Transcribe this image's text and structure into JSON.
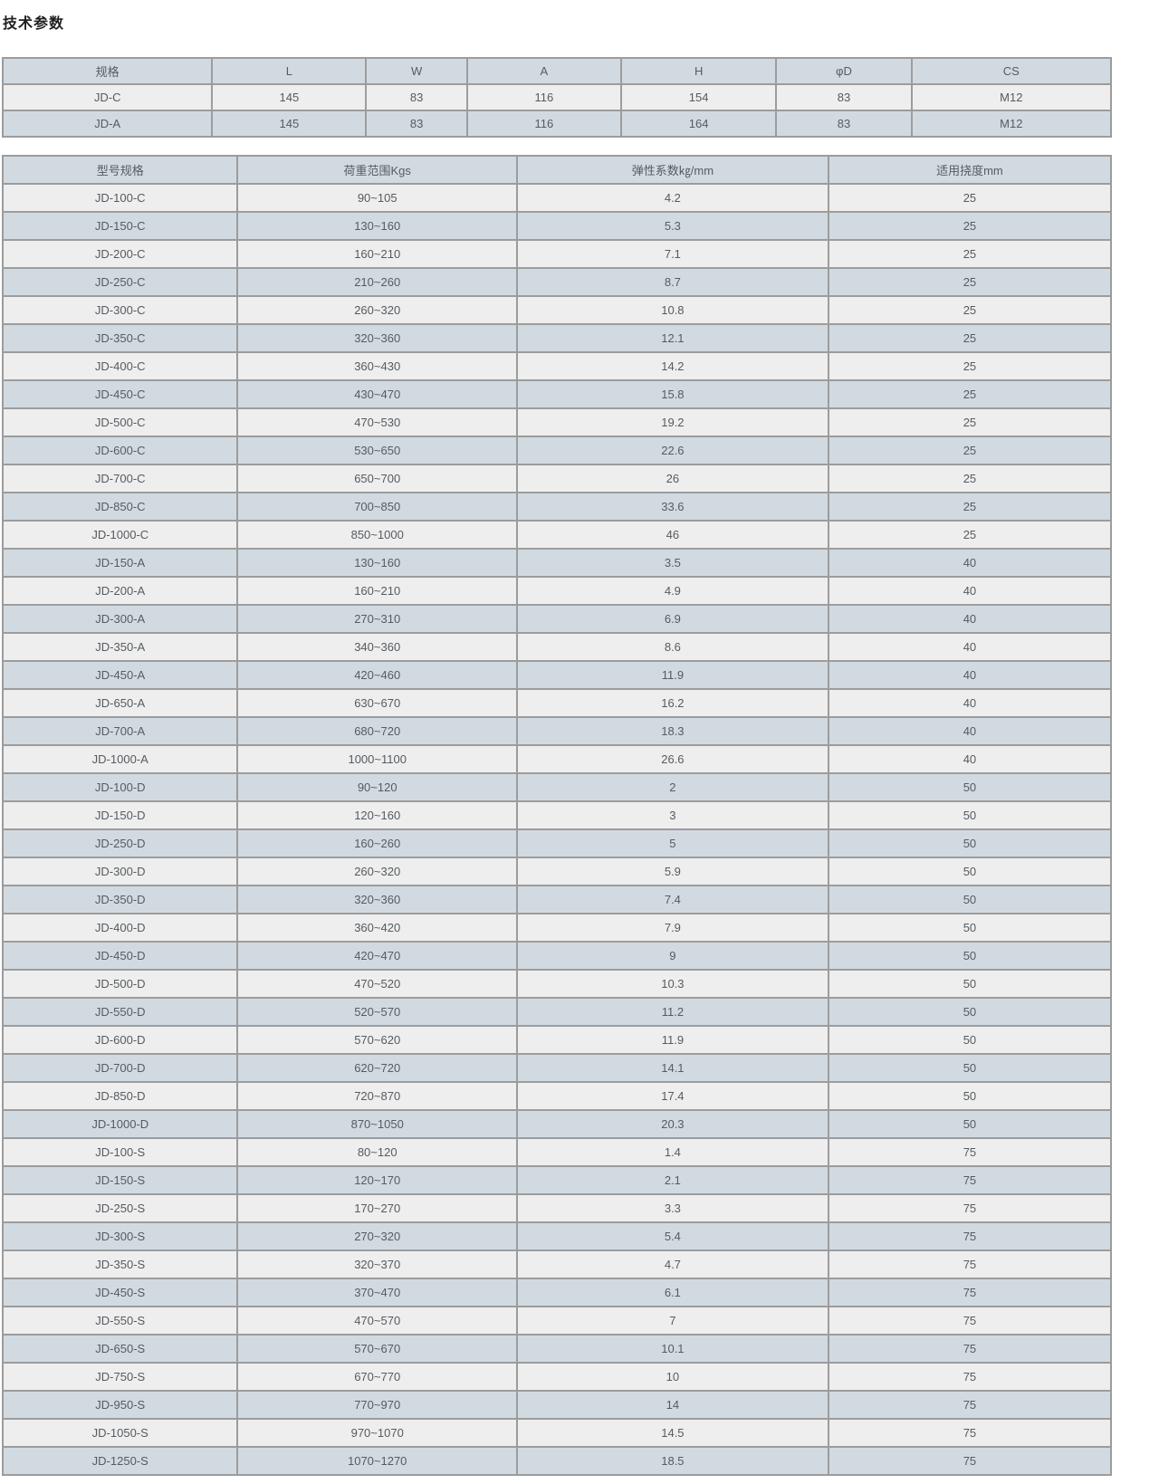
{
  "page": {
    "title": "技术参数"
  },
  "colors": {
    "header_and_alt_row": "#d2dae1",
    "row": "#eeeeee",
    "border": "#9c9c9c",
    "text": "#565b60",
    "title_text": "#1f1f1f"
  },
  "spec_table": {
    "headers": [
      "规格",
      "L",
      "W",
      "A",
      "H",
      "φD",
      "CS"
    ],
    "rows": [
      [
        "JD-C",
        "145",
        "83",
        "116",
        "154",
        "83",
        "M12"
      ],
      [
        "JD-A",
        "145",
        "83",
        "116",
        "164",
        "83",
        "M12"
      ]
    ]
  },
  "model_table": {
    "headers": [
      "型号规格",
      "荷重范围Kgs",
      "弹性系数㎏/mm",
      "适用挠度mm"
    ],
    "rows": [
      [
        "JD-100-C",
        "90~105",
        "4.2",
        "25"
      ],
      [
        "JD-150-C",
        "130~160",
        "5.3",
        "25"
      ],
      [
        "JD-200-C",
        "160~210",
        "7.1",
        "25"
      ],
      [
        "JD-250-C",
        "210~260",
        "8.7",
        "25"
      ],
      [
        "JD-300-C",
        "260~320",
        "10.8",
        "25"
      ],
      [
        "JD-350-C",
        "320~360",
        "12.1",
        "25"
      ],
      [
        "JD-400-C",
        "360~430",
        "14.2",
        "25"
      ],
      [
        "JD-450-C",
        "430~470",
        "15.8",
        "25"
      ],
      [
        "JD-500-C",
        "470~530",
        "19.2",
        "25"
      ],
      [
        "JD-600-C",
        "530~650",
        "22.6",
        "25"
      ],
      [
        "JD-700-C",
        "650~700",
        "26",
        "25"
      ],
      [
        "JD-850-C",
        "700~850",
        "33.6",
        "25"
      ],
      [
        "JD-1000-C",
        "850~1000",
        "46",
        "25"
      ],
      [
        "JD-150-A",
        "130~160",
        "3.5",
        "40"
      ],
      [
        "JD-200-A",
        "160~210",
        "4.9",
        "40"
      ],
      [
        "JD-300-A",
        "270~310",
        "6.9",
        "40"
      ],
      [
        "JD-350-A",
        "340~360",
        "8.6",
        "40"
      ],
      [
        "JD-450-A",
        "420~460",
        "11.9",
        "40"
      ],
      [
        "JD-650-A",
        "630~670",
        "16.2",
        "40"
      ],
      [
        "JD-700-A",
        "680~720",
        "18.3",
        "40"
      ],
      [
        "JD-1000-A",
        "1000~1100",
        "26.6",
        "40"
      ],
      [
        "JD-100-D",
        "90~120",
        "2",
        "50"
      ],
      [
        "JD-150-D",
        "120~160",
        "3",
        "50"
      ],
      [
        "JD-250-D",
        "160~260",
        "5",
        "50"
      ],
      [
        "JD-300-D",
        "260~320",
        "5.9",
        "50"
      ],
      [
        "JD-350-D",
        "320~360",
        "7.4",
        "50"
      ],
      [
        "JD-400-D",
        "360~420",
        "7.9",
        "50"
      ],
      [
        "JD-450-D",
        "420~470",
        "9",
        "50"
      ],
      [
        "JD-500-D",
        "470~520",
        "10.3",
        "50"
      ],
      [
        "JD-550-D",
        "520~570",
        "11.2",
        "50"
      ],
      [
        "JD-600-D",
        "570~620",
        "11.9",
        "50"
      ],
      [
        "JD-700-D",
        "620~720",
        "14.1",
        "50"
      ],
      [
        "JD-850-D",
        "720~870",
        "17.4",
        "50"
      ],
      [
        "JD-1000-D",
        "870~1050",
        "20.3",
        "50"
      ],
      [
        "JD-100-S",
        "80~120",
        "1.4",
        "75"
      ],
      [
        "JD-150-S",
        "120~170",
        "2.1",
        "75"
      ],
      [
        "JD-250-S",
        "170~270",
        "3.3",
        "75"
      ],
      [
        "JD-300-S",
        "270~320",
        "5.4",
        "75"
      ],
      [
        "JD-350-S",
        "320~370",
        "4.7",
        "75"
      ],
      [
        "JD-450-S",
        "370~470",
        "6.1",
        "75"
      ],
      [
        "JD-550-S",
        "470~570",
        "7",
        "75"
      ],
      [
        "JD-650-S",
        "570~670",
        "10.1",
        "75"
      ],
      [
        "JD-750-S",
        "670~770",
        "10",
        "75"
      ],
      [
        "JD-950-S",
        "770~970",
        "14",
        "75"
      ],
      [
        "JD-1050-S",
        "970~1070",
        "14.5",
        "75"
      ],
      [
        "JD-1250-S",
        "1070~1270",
        "18.5",
        "75"
      ]
    ]
  }
}
